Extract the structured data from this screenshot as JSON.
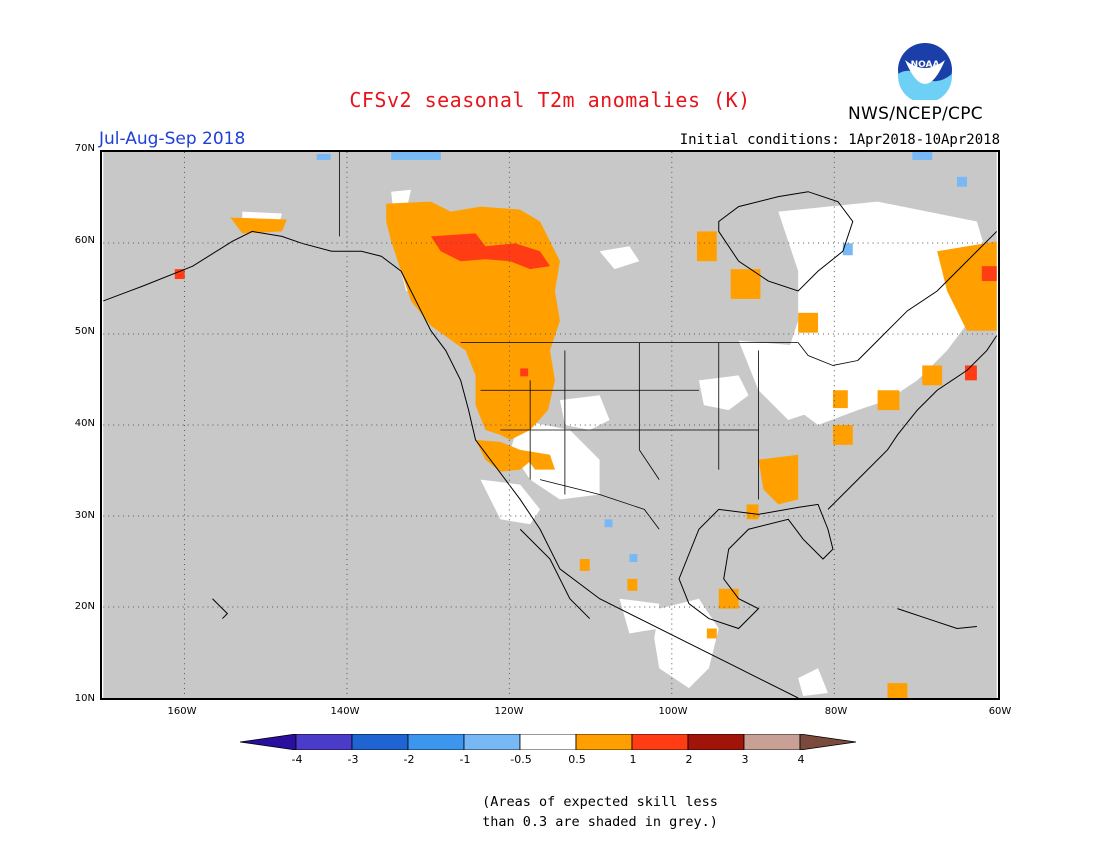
{
  "title": "CFSv2 seasonal T2m anomalies (K)",
  "season": "Jul-Aug-Sep 2018",
  "initial_conditions": "Initial conditions: 1Apr2018-10Apr2018",
  "agency": "NWS/NCEP/CPC",
  "logo_text": "NOAA",
  "map": {
    "lon_range": [
      -170,
      -60
    ],
    "lat_range": [
      10,
      70
    ],
    "lat_labels": [
      "70N",
      "60N",
      "50N",
      "40N",
      "30N",
      "20N",
      "10N"
    ],
    "lon_labels": [
      "160W",
      "140W",
      "120W",
      "100W",
      "80W",
      "60W"
    ],
    "grid": "dotted",
    "background_color": "#c8c8c8",
    "land_color": "#ffffff"
  },
  "colorbar": {
    "labels": [
      "-4",
      "-3",
      "-2",
      "-1",
      "-0.5",
      "0.5",
      "1",
      "2",
      "3",
      "4"
    ],
    "colors": [
      "#2a0f9e",
      "#4a3cc8",
      "#1f64d2",
      "#3c96ee",
      "#78b9f5",
      "#ffffff",
      "#ffa000",
      "#ff3c14",
      "#a0140a",
      "#c8a096",
      "#7a4a3c"
    ]
  },
  "note": [
    "(Areas of expected skill less",
    "than 0.3 are shaded in grey.)"
  ]
}
